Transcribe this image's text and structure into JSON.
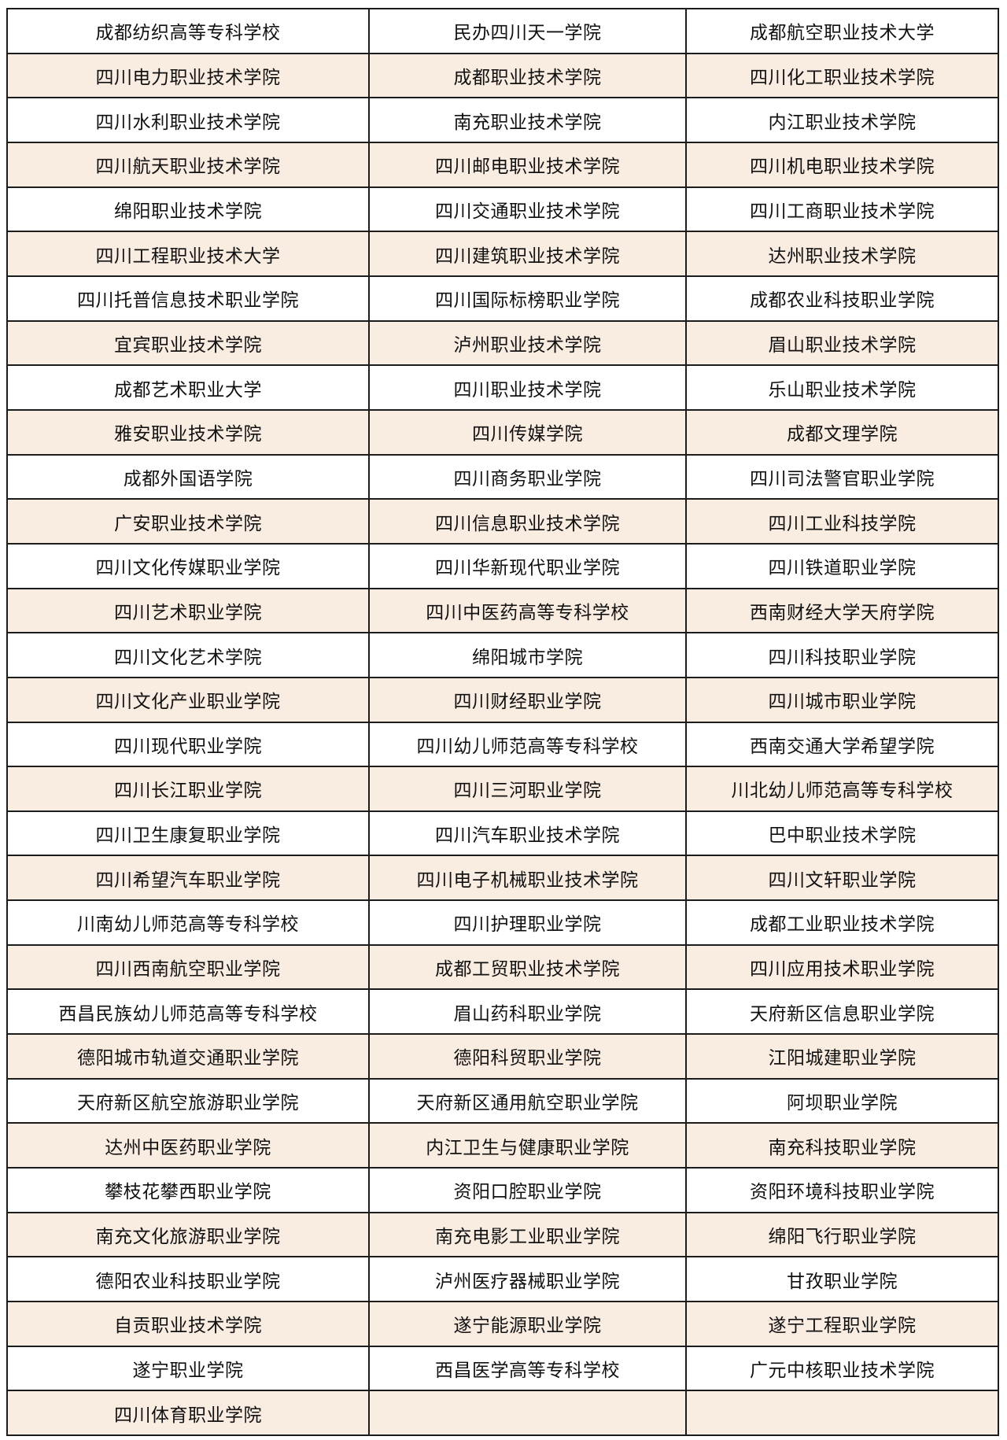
{
  "page": {
    "background_color": "#ffffff"
  },
  "table": {
    "description": "List of Sichuan vocational and technical colleges, 3 columns, alternating row colors",
    "border_color": "#1c1c1c",
    "row_color_odd": "#ffffff",
    "row_color_even": "#f9ece1",
    "column_count": 3,
    "rows": [
      [
        "成都纺织高等专科学校",
        "民办四川天一学院",
        "成都航空职业技术大学"
      ],
      [
        "四川电力职业技术学院",
        "成都职业技术学院",
        "四川化工职业技术学院"
      ],
      [
        "四川水利职业技术学院",
        "南充职业技术学院",
        "内江职业技术学院"
      ],
      [
        "四川航天职业技术学院",
        "四川邮电职业技术学院",
        "四川机电职业技术学院"
      ],
      [
        "绵阳职业技术学院",
        "四川交通职业技术学院",
        "四川工商职业技术学院"
      ],
      [
        "四川工程职业技术大学",
        "四川建筑职业技术学院",
        "达州职业技术学院"
      ],
      [
        "四川托普信息技术职业学院",
        "四川国际标榜职业学院",
        "成都农业科技职业学院"
      ],
      [
        "宜宾职业技术学院",
        "泸州职业技术学院",
        "眉山职业技术学院"
      ],
      [
        "成都艺术职业大学",
        "四川职业技术学院",
        "乐山职业技术学院"
      ],
      [
        "雅安职业技术学院",
        "四川传媒学院",
        "成都文理学院"
      ],
      [
        "成都外国语学院",
        "四川商务职业学院",
        "四川司法警官职业学院"
      ],
      [
        "广安职业技术学院",
        "四川信息职业技术学院",
        "四川工业科技学院"
      ],
      [
        "四川文化传媒职业学院",
        "四川华新现代职业学院",
        "四川铁道职业学院"
      ],
      [
        "四川艺术职业学院",
        "四川中医药高等专科学校",
        "西南财经大学天府学院"
      ],
      [
        "四川文化艺术学院",
        "绵阳城市学院",
        "四川科技职业学院"
      ],
      [
        "四川文化产业职业学院",
        "四川财经职业学院",
        "四川城市职业学院"
      ],
      [
        "四川现代职业学院",
        "四川幼儿师范高等专科学校",
        "西南交通大学希望学院"
      ],
      [
        "四川长江职业学院",
        "四川三河职业学院",
        "川北幼儿师范高等专科学校"
      ],
      [
        "四川卫生康复职业学院",
        "四川汽车职业技术学院",
        "巴中职业技术学院"
      ],
      [
        "四川希望汽车职业学院",
        "四川电子机械职业技术学院",
        "四川文轩职业学院"
      ],
      [
        "川南幼儿师范高等专科学校",
        "四川护理职业学院",
        "成都工业职业技术学院"
      ],
      [
        "四川西南航空职业学院",
        "成都工贸职业技术学院",
        "四川应用技术职业学院"
      ],
      [
        "西昌民族幼儿师范高等专科学校",
        "眉山药科职业学院",
        "天府新区信息职业学院"
      ],
      [
        "德阳城市轨道交通职业学院",
        "德阳科贸职业学院",
        "江阳城建职业学院"
      ],
      [
        "天府新区航空旅游职业学院",
        "天府新区通用航空职业学院",
        "阿坝职业学院"
      ],
      [
        "达州中医药职业学院",
        "内江卫生与健康职业学院",
        "南充科技职业学院"
      ],
      [
        "攀枝花攀西职业学院",
        "资阳口腔职业学院",
        "资阳环境科技职业学院"
      ],
      [
        "南充文化旅游职业学院",
        "南充电影工业职业学院",
        "绵阳飞行职业学院"
      ],
      [
        "德阳农业科技职业学院",
        "泸州医疗器械职业学院",
        "甘孜职业学院"
      ],
      [
        "自贡职业技术学院",
        "遂宁能源职业学院",
        "遂宁工程职业学院"
      ],
      [
        "遂宁职业学院",
        "西昌医学高等专科学校",
        "广元中核职业技术学院"
      ],
      [
        "四川体育职业学院",
        "",
        ""
      ]
    ]
  }
}
